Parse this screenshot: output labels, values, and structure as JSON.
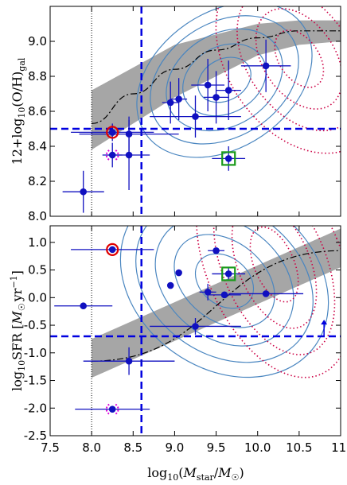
{
  "chart_data": [
    {
      "type": "scatter",
      "panel": "top",
      "ylabel": "12+log10(O/H)gal",
      "ylabel_parts": {
        "pre": "12+log",
        "sub1": "10",
        "mid": "(O/H)",
        "sub2": "gal"
      },
      "xlim": [
        7.5,
        11.0
      ],
      "ylim": [
        8.0,
        9.2
      ],
      "yticks": [
        8.0,
        8.2,
        8.4,
        8.6,
        8.8,
        9.0
      ],
      "ytick_labels": [
        "8.0",
        "8.2",
        "8.4",
        "8.6",
        "8.8",
        "9.0"
      ],
      "grid": false,
      "dotted_vline": 8.0,
      "dashed_vline": 8.6,
      "dashed_hline": 8.5,
      "colors": {
        "points": "#1010c0",
        "dashed": "#0000e0",
        "contour": "#4a86c0",
        "dotted_contour": "#cc0044",
        "band": "#a6a6a6",
        "red_circle": "#e00000",
        "green_square": "#1a9a1a",
        "magenta": "#dd00dd"
      },
      "band": {
        "x": [
          8.0,
          9.0,
          10.0,
          10.5,
          11.0
        ],
        "lower": [
          8.38,
          8.68,
          8.92,
          8.98,
          9.0
        ],
        "upper": [
          8.72,
          8.98,
          9.1,
          9.12,
          9.12
        ]
      },
      "mean_line": {
        "x": [
          8.0,
          8.5,
          9.0,
          9.5,
          10.0,
          10.5,
          11.0
        ],
        "y": [
          8.53,
          8.7,
          8.84,
          8.95,
          9.02,
          9.06,
          9.06
        ]
      },
      "points": [
        {
          "x": 7.9,
          "y": 8.14,
          "xerr": 0.25,
          "yerr": 0.12
        },
        {
          "x": 8.25,
          "y": 8.48,
          "xerr": 0.5,
          "yerr": 0.05
        },
        {
          "x": 8.25,
          "y": 8.35,
          "xerr": 0.12,
          "yerr": 0.07
        },
        {
          "x": 8.45,
          "y": 8.35,
          "xerr": 0.25,
          "yerr": 0.2
        },
        {
          "x": 8.45,
          "y": 8.47,
          "xerr": 0.6,
          "yerr": 0.1
        },
        {
          "x": 8.95,
          "y": 8.65,
          "xerr": 0.1,
          "yerr": 0.12
        },
        {
          "x": 9.05,
          "y": 8.67,
          "xerr": 0.1,
          "yerr": 0.12
        },
        {
          "x": 9.25,
          "y": 8.57,
          "xerr": 0.55,
          "yerr": 0.12
        },
        {
          "x": 9.4,
          "y": 8.75,
          "xerr": 0.2,
          "yerr": 0.15
        },
        {
          "x": 9.5,
          "y": 8.68,
          "xerr": 0.15,
          "yerr": 0.15
        },
        {
          "x": 9.65,
          "y": 8.72,
          "xerr": 0.15,
          "yerr": 0.17
        },
        {
          "x": 9.65,
          "y": 8.33,
          "xerr": 0.2,
          "yerr": 0.07
        },
        {
          "x": 10.1,
          "y": 8.86,
          "xerr": 0.3,
          "yerr": 0.15
        }
      ],
      "red_circle": {
        "x": 8.25,
        "y": 8.48
      },
      "green_square": {
        "x": 9.65,
        "y": 8.33
      },
      "magenta_marker": {
        "x": 8.25,
        "y": 8.35
      }
    },
    {
      "type": "scatter",
      "panel": "bottom",
      "ylabel": "log10SFR [M☉yr−1]",
      "ylabel_parts": {
        "pre": "log",
        "sub1": "10",
        "mid": "SFR [",
        "m": "M",
        "msub": "☉",
        "yr": "yr",
        "sup": "−1",
        "end": "]"
      },
      "xlabel": "log10(Mstar/M☉)",
      "xlabel_parts": {
        "pre": "log",
        "sub1": "10",
        "open": "(",
        "m": "M",
        "msub": "star",
        "slash": "/",
        "m2": "M",
        "msub2": "☉",
        "close": ")"
      },
      "xlim": [
        7.5,
        11.0
      ],
      "ylim": [
        -2.5,
        1.3
      ],
      "xticks": [
        7.5,
        8.0,
        8.5,
        9.0,
        9.5,
        10.0,
        10.5,
        11.0
      ],
      "xtick_labels": [
        "7.5",
        "8.0",
        "8.5",
        "9.0",
        "9.5",
        "10.0",
        "10.5",
        "11."
      ],
      "yticks": [
        -2.5,
        -2.0,
        -1.5,
        -1.0,
        -0.5,
        0.0,
        0.5,
        1.0
      ],
      "ytick_labels": [
        "-2.5",
        "-2.0",
        "-1.5",
        "-1.0",
        "-0.5",
        "0.0",
        "0.5",
        "1.0"
      ],
      "grid": false,
      "dotted_vline": 8.0,
      "dashed_vline": 8.6,
      "dashed_hline": -0.7,
      "upper_arrow": {
        "x": 10.8,
        "y_from": -0.7,
        "y_to": -0.4
      },
      "band": {
        "x": [
          8.0,
          11.0
        ],
        "lower": [
          -1.45,
          0.55
        ],
        "upper": [
          -0.75,
          1.25
        ]
      },
      "mean_line": {
        "x": [
          8.0,
          11.0
        ],
        "y": [
          -1.15,
          0.85
        ]
      },
      "points": [
        {
          "x": 7.9,
          "y": -0.15,
          "xerr": 0.35,
          "yerr": 0
        },
        {
          "x": 8.25,
          "y": 0.87,
          "xerr": 0.5,
          "yerr": 0
        },
        {
          "x": 8.25,
          "y": -2.02,
          "xerr": 0.45,
          "yerr": 0
        },
        {
          "x": 8.45,
          "y": -1.15,
          "xerr": 0.55,
          "yerr": 0.25
        },
        {
          "x": 8.95,
          "y": 0.22,
          "xerr": 0,
          "yerr": 0
        },
        {
          "x": 9.05,
          "y": 0.45,
          "xerr": 0,
          "yerr": 0
        },
        {
          "x": 9.25,
          "y": -0.52,
          "xerr": 0.55,
          "yerr": 0.15
        },
        {
          "x": 9.4,
          "y": 0.1,
          "xerr": 0.1,
          "yerr": 0.15
        },
        {
          "x": 9.5,
          "y": 0.85,
          "xerr": 0.1,
          "yerr": 0
        },
        {
          "x": 9.6,
          "y": 0.05,
          "xerr": 0.2,
          "yerr": 0
        },
        {
          "x": 9.65,
          "y": 0.43,
          "xerr": 0.2,
          "yerr": 0.1
        },
        {
          "x": 10.1,
          "y": 0.07,
          "xerr": 0.45,
          "yerr": 0
        }
      ],
      "red_circle": {
        "x": 8.25,
        "y": 0.87
      },
      "green_square": {
        "x": 9.65,
        "y": 0.43
      },
      "magenta_marker": {
        "x": 8.25,
        "y": -2.02
      }
    }
  ]
}
